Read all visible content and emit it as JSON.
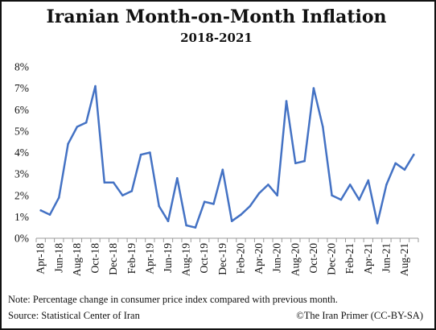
{
  "chart_data": {
    "type": "line",
    "title": "Iranian Month-on-Month Inflation",
    "subtitle": "2018-2021",
    "xlabel": "",
    "ylabel": "",
    "ylim": [
      0,
      8
    ],
    "y_ticks": [
      "0%",
      "1%",
      "2%",
      "3%",
      "4%",
      "5%",
      "6%",
      "7%",
      "8%"
    ],
    "x_tick_labels": [
      "Apr-18",
      "Jun-18",
      "Aug-18",
      "Oct-18",
      "Dec-18",
      "Feb-19",
      "Apr-19",
      "Jun-19",
      "Aug-19",
      "Oct-19",
      "Dec-19",
      "Feb-20",
      "Apr-20",
      "Jun-20",
      "Aug-20",
      "Oct-20",
      "Dec-20",
      "Feb-21",
      "Apr-21",
      "Jun-21",
      "Aug-21"
    ],
    "categories": [
      "Apr-18",
      "May-18",
      "Jun-18",
      "Jul-18",
      "Aug-18",
      "Sep-18",
      "Oct-18",
      "Nov-18",
      "Dec-18",
      "Jan-19",
      "Feb-19",
      "Mar-19",
      "Apr-19",
      "May-19",
      "Jun-19",
      "Jul-19",
      "Aug-19",
      "Sep-19",
      "Oct-19",
      "Nov-19",
      "Dec-19",
      "Jan-20",
      "Feb-20",
      "Mar-20",
      "Apr-20",
      "May-20",
      "Jun-20",
      "Jul-20",
      "Aug-20",
      "Sep-20",
      "Oct-20",
      "Nov-20",
      "Dec-20",
      "Jan-21",
      "Feb-21",
      "Mar-21",
      "Apr-21",
      "May-21",
      "Jun-21",
      "Jul-21",
      "Aug-21",
      "Sep-21"
    ],
    "series": [
      {
        "values": [
          1.3,
          1.1,
          1.9,
          4.4,
          5.2,
          5.4,
          7.1,
          2.6,
          2.6,
          2.0,
          2.2,
          3.9,
          4.0,
          1.5,
          0.8,
          2.8,
          0.6,
          0.5,
          1.7,
          1.6,
          3.2,
          0.8,
          1.1,
          1.5,
          2.1,
          2.5,
          2.0,
          6.4,
          3.5,
          3.6,
          7.0,
          5.2,
          2.0,
          1.8,
          2.5,
          1.8,
          2.7,
          0.7,
          2.5,
          3.5,
          3.2,
          3.9
        ],
        "color": "#4472C4"
      }
    ],
    "grid": false,
    "legend": "none"
  },
  "footer": {
    "note": "Note: Percentage change in consumer price index compared with previous month.",
    "source": "Source: Statistical Center of Iran",
    "credit": "©The Iran Primer (CC-BY-SA)"
  }
}
